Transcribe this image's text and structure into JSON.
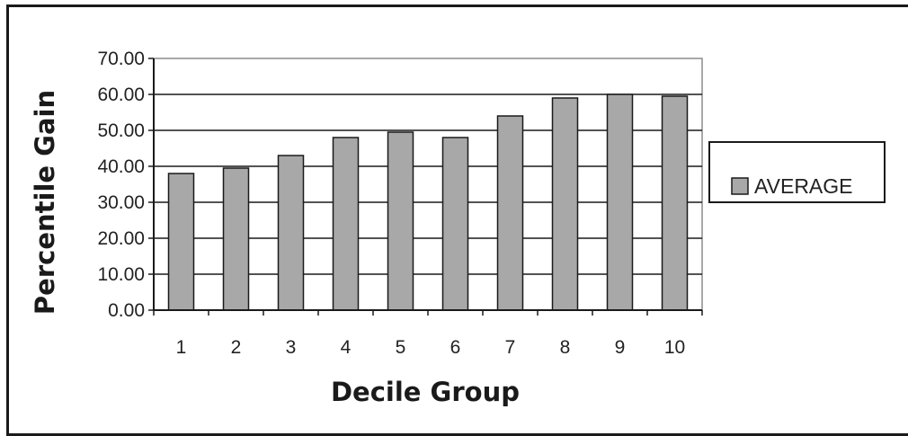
{
  "chart_data": {
    "type": "bar",
    "categories": [
      "1",
      "2",
      "3",
      "4",
      "5",
      "6",
      "7",
      "8",
      "9",
      "10"
    ],
    "series": [
      {
        "name": "AVERAGE",
        "values": [
          38.0,
          39.5,
          43.0,
          48.0,
          49.5,
          48.0,
          54.0,
          59.0,
          60.0,
          59.5
        ]
      }
    ],
    "y_ticks": [
      "0.00",
      "10.00",
      "20.00",
      "30.00",
      "40.00",
      "50.00",
      "60.00",
      "70.00"
    ],
    "ylim": [
      0,
      70
    ],
    "xlabel": "Decile Group",
    "ylabel": "Percentile Gain",
    "legend_position": "right",
    "grid": true,
    "bar_color": "#a8a8a8",
    "border_color": "#1a1a1a"
  }
}
